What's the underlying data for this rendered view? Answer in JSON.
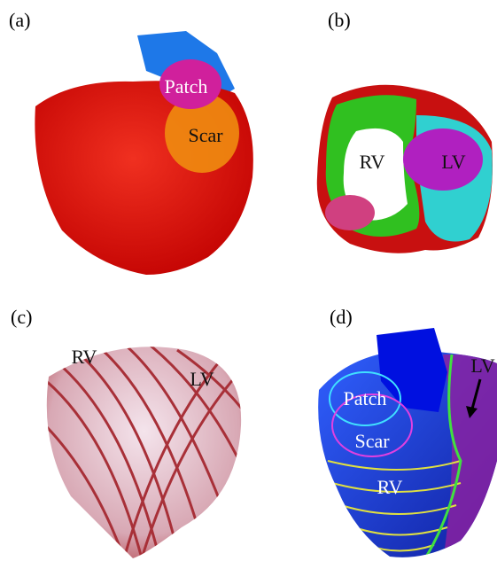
{
  "panels": [
    {
      "label": "(a)",
      "annotations": [
        "Patch",
        "Scar"
      ]
    },
    {
      "label": "(b)",
      "annotations": [
        "RV",
        "LV"
      ]
    },
    {
      "label": "(c)",
      "annotations": [
        "RV",
        "LV"
      ]
    },
    {
      "label": "(d)",
      "annotations": [
        "Patch",
        "Scar",
        "RV",
        "LV"
      ]
    }
  ]
}
